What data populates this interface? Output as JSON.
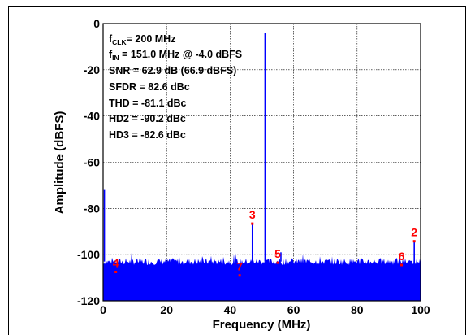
{
  "chart_data": {
    "type": "spectrum",
    "xlabel": "Frequency (MHz)",
    "ylabel": "Amplitude (dBFS)",
    "xlim": [
      0,
      100
    ],
    "ylim": [
      -120,
      0
    ],
    "x_ticks": [
      "0",
      "20",
      "40",
      "60",
      "80",
      "100"
    ],
    "y_ticks": [
      "0",
      "-20",
      "-40",
      "-60",
      "-80",
      "-100",
      "-120"
    ],
    "grid": true,
    "line_color": "#0000ff",
    "marker_color": "#ff0000",
    "noise_floor_dbfs": -103,
    "annotations": {
      "fclk": {
        "main": "f",
        "sub": "CLK",
        "rest": "= 200 MHz"
      },
      "fin": {
        "main": "f",
        "sub": "IN",
        "rest": " = 151.0 MHz @ -4.0 dBFS"
      },
      "snr": "SNR = 62.9 dB (66.9 dBFS)",
      "sfdr": "SFDR = 82.6 dBc",
      "thd": "THD = -81.1 dBc",
      "hd2": "HD2 = -90.2 dBc",
      "hd3": "HD3 = -82.6 dBc"
    },
    "spurs": [
      {
        "x": 0.4,
        "y": -72
      },
      {
        "x": 51.0,
        "y": -4.0
      },
      {
        "x": 47.0,
        "y": -86.6
      },
      {
        "x": 98.0,
        "y": -94.2
      },
      {
        "x": 56.0,
        "y": -99.0
      }
    ],
    "harmonic_labels": [
      {
        "label": "4",
        "x": 4.0,
        "y": -107.5
      },
      {
        "label": "7",
        "x": 43.0,
        "y": -109.0
      },
      {
        "label": "3",
        "x": 47.0,
        "y": -86.6
      },
      {
        "label": "5",
        "x": 55.0,
        "y": -103.5
      },
      {
        "label": "6",
        "x": 94.0,
        "y": -104.5
      },
      {
        "label": "2",
        "x": 98.0,
        "y": -94.2
      }
    ]
  }
}
